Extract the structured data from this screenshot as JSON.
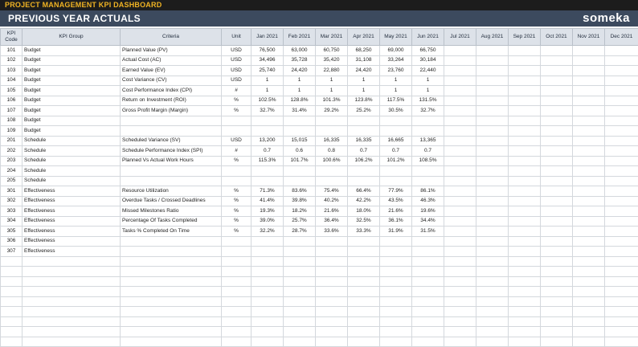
{
  "header": {
    "app_title": "PROJECT MANAGEMENT KPI DASHBOARD",
    "section_title": "PREVIOUS YEAR ACTUALS",
    "logo": "someka"
  },
  "table": {
    "columns": [
      "KPI Code",
      "KPI Group",
      "Criteria",
      "Unit",
      "Jan 2021",
      "Feb 2021",
      "Mar 2021",
      "Apr 2021",
      "May 2021",
      "Jun 2021",
      "Jul 2021",
      "Aug 2021",
      "Sep 2021",
      "Oct 2021",
      "Nov 2021",
      "Dec 2021"
    ],
    "rows": [
      [
        "101",
        "Budget",
        "Planned Value (PV)",
        "USD",
        "76,500",
        "63,000",
        "60,750",
        "68,250",
        "69,000",
        "66,750",
        "",
        "",
        "",
        "",
        "",
        ""
      ],
      [
        "102",
        "Budget",
        "Actual Cost (AC)",
        "USD",
        "34,496",
        "35,728",
        "35,420",
        "31,108",
        "33,264",
        "30,184",
        "",
        "",
        "",
        "",
        "",
        ""
      ],
      [
        "103",
        "Budget",
        "Earned Value (EV)",
        "USD",
        "25,740",
        "24,420",
        "22,880",
        "24,420",
        "23,760",
        "22,440",
        "",
        "",
        "",
        "",
        "",
        ""
      ],
      [
        "104",
        "Budget",
        "Cost Variance (CV)",
        "USD",
        "1",
        "1",
        "1",
        "1",
        "1",
        "1",
        "",
        "",
        "",
        "",
        "",
        ""
      ],
      [
        "105",
        "Budget",
        "Cost Performance Index (CPI)",
        "#",
        "1",
        "1",
        "1",
        "1",
        "1",
        "1",
        "",
        "",
        "",
        "",
        "",
        ""
      ],
      [
        "106",
        "Budget",
        "Return on Investment (ROI)",
        "%",
        "102.5%",
        "128.8%",
        "101.3%",
        "123.8%",
        "117.5%",
        "131.5%",
        "",
        "",
        "",
        "",
        "",
        ""
      ],
      [
        "107",
        "Budget",
        "Gross Profit Margin (Margin)",
        "%",
        "32.7%",
        "31.4%",
        "29.2%",
        "25.2%",
        "30.5%",
        "32.7%",
        "",
        "",
        "",
        "",
        "",
        ""
      ],
      [
        "108",
        "Budget",
        "",
        "",
        "",
        "",
        "",
        "",
        "",
        "",
        "",
        "",
        "",
        "",
        "",
        ""
      ],
      [
        "109",
        "Budget",
        "",
        "",
        "",
        "",
        "",
        "",
        "",
        "",
        "",
        "",
        "",
        "",
        "",
        ""
      ],
      [
        "201",
        "Schedule",
        "Scheduled Variance (SV)",
        "USD",
        "13,200",
        "15,015",
        "16,335",
        "16,335",
        "16,665",
        "13,365",
        "",
        "",
        "",
        "",
        "",
        ""
      ],
      [
        "202",
        "Schedule",
        "Schedule Performance Index (SPI)",
        "#",
        "0.7",
        "0.6",
        "0.8",
        "0.7",
        "0.7",
        "0.7",
        "",
        "",
        "",
        "",
        "",
        ""
      ],
      [
        "203",
        "Schedule",
        "Planned Vs Actual Work Hours",
        "%",
        "115.3%",
        "101.7%",
        "100.6%",
        "106.2%",
        "101.2%",
        "108.5%",
        "",
        "",
        "",
        "",
        "",
        ""
      ],
      [
        "204",
        "Schedule",
        "",
        "",
        "",
        "",
        "",
        "",
        "",
        "",
        "",
        "",
        "",
        "",
        "",
        ""
      ],
      [
        "205",
        "Schedule",
        "",
        "",
        "",
        "",
        "",
        "",
        "",
        "",
        "",
        "",
        "",
        "",
        "",
        ""
      ],
      [
        "301",
        "Effectiveness",
        "Resource Utilization",
        "%",
        "71.3%",
        "83.6%",
        "75.4%",
        "66.4%",
        "77.9%",
        "86.1%",
        "",
        "",
        "",
        "",
        "",
        ""
      ],
      [
        "302",
        "Effectiveness",
        "Overdue Tasks / Crossed Deadlines",
        "%",
        "41.4%",
        "39.8%",
        "40.2%",
        "42.2%",
        "43.5%",
        "46.3%",
        "",
        "",
        "",
        "",
        "",
        ""
      ],
      [
        "303",
        "Effectiveness",
        "Missed Milestones Ratio",
        "%",
        "19.3%",
        "18.2%",
        "21.6%",
        "18.0%",
        "21.6%",
        "19.6%",
        "",
        "",
        "",
        "",
        "",
        ""
      ],
      [
        "304",
        "Effectiveness",
        "Percentage Of Tasks Completed",
        "%",
        "39.0%",
        "25.7%",
        "36.4%",
        "32.5%",
        "36.1%",
        "34.4%",
        "",
        "",
        "",
        "",
        "",
        ""
      ],
      [
        "305",
        "Effectiveness",
        "Tasks % Completed On Time",
        "%",
        "32.2%",
        "28.7%",
        "33.6%",
        "33.3%",
        "31.9%",
        "31.5%",
        "",
        "",
        "",
        "",
        "",
        ""
      ],
      [
        "306",
        "Effectiveness",
        "",
        "",
        "",
        "",
        "",
        "",
        "",
        "",
        "",
        "",
        "",
        "",
        "",
        ""
      ],
      [
        "307",
        "Effectiveness",
        "",
        "",
        "",
        "",
        "",
        "",
        "",
        "",
        "",
        "",
        "",
        "",
        "",
        ""
      ],
      [
        "",
        "",
        "",
        "",
        "",
        "",
        "",
        "",
        "",
        "",
        "",
        "",
        "",
        "",
        "",
        ""
      ],
      [
        "",
        "",
        "",
        "",
        "",
        "",
        "",
        "",
        "",
        "",
        "",
        "",
        "",
        "",
        "",
        ""
      ],
      [
        "",
        "",
        "",
        "",
        "",
        "",
        "",
        "",
        "",
        "",
        "",
        "",
        "",
        "",
        "",
        ""
      ],
      [
        "",
        "",
        "",
        "",
        "",
        "",
        "",
        "",
        "",
        "",
        "",
        "",
        "",
        "",
        "",
        ""
      ],
      [
        "",
        "",
        "",
        "",
        "",
        "",
        "",
        "",
        "",
        "",
        "",
        "",
        "",
        "",
        "",
        ""
      ],
      [
        "",
        "",
        "",
        "",
        "",
        "",
        "",
        "",
        "",
        "",
        "",
        "",
        "",
        "",
        "",
        ""
      ],
      [
        "",
        "",
        "",
        "",
        "",
        "",
        "",
        "",
        "",
        "",
        "",
        "",
        "",
        "",
        "",
        ""
      ],
      [
        "",
        "",
        "",
        "",
        "",
        "",
        "",
        "",
        "",
        "",
        "",
        "",
        "",
        "",
        "",
        ""
      ],
      [
        "",
        "",
        "",
        "",
        "",
        "",
        "",
        "",
        "",
        "",
        "",
        "",
        "",
        "",
        "",
        ""
      ]
    ]
  },
  "colors": {
    "topbar": "#1c1c1c",
    "app_title": "#f0b323",
    "titlebar": "#3c4a5e",
    "header_cell": "#dde2e9"
  }
}
